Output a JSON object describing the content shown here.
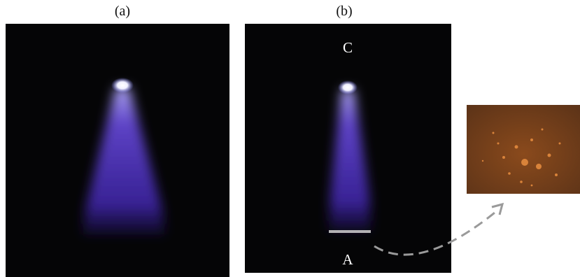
{
  "panels": [
    {
      "label": "(a)"
    },
    {
      "label": "(b)",
      "top_label": "C",
      "bottom_label": "A"
    }
  ]
}
